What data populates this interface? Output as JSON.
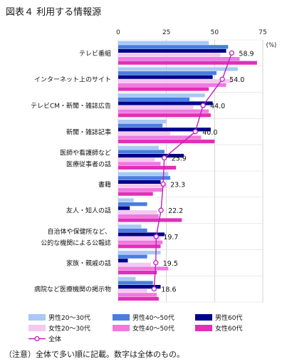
{
  "figure_title": "図表４ 利用する情報源",
  "footnote": "（注意）全体で多い順に記載。数字は全体のもの。",
  "colors": {
    "m2030": "#a9c8f5",
    "m4050": "#4a7ee0",
    "m60": "#00008b",
    "f2030": "#f4c8f0",
    "f4050": "#ee7ae0",
    "f60": "#e030b8",
    "total": "#c020c0"
  },
  "chart_data": {
    "type": "bar",
    "orientation": "horizontal",
    "unit": "(%)",
    "xlim": [
      0,
      75
    ],
    "xticks": [
      "0",
      "25",
      "50",
      "75"
    ],
    "categories": [
      [
        "テレビ番組"
      ],
      [
        "インターネット上のサイト"
      ],
      [
        "テレビCM・新聞・雑誌広告"
      ],
      [
        "新聞・雑誌記事"
      ],
      [
        "医師や看護師など",
        "医療従事者の話"
      ],
      [
        "書籍"
      ],
      [
        "友人・知人の話"
      ],
      [
        "自治体や保健所など、",
        "公的な機関による公報誌"
      ],
      [
        "家族・親戚の話"
      ],
      [
        "病院など医療機関の掲示物"
      ]
    ],
    "series": [
      {
        "name": "男性20～30代",
        "color_key": "m2030",
        "values": [
          47,
          62,
          45,
          25,
          21,
          26,
          8,
          12,
          22,
          9
        ]
      },
      {
        "name": "男性40～50代",
        "color_key": "m4050",
        "values": [
          57,
          51,
          37,
          23,
          24,
          27,
          15,
          15,
          15,
          18
        ]
      },
      {
        "name": "男性60代",
        "color_key": "m60",
        "values": [
          56,
          49,
          49,
          48,
          34,
          22,
          6,
          24,
          5,
          22
        ]
      },
      {
        "name": "女性20～30代",
        "color_key": "f2030",
        "values": [
          53,
          59,
          39,
          27,
          19,
          25,
          20,
          22,
          17,
          15
        ]
      },
      {
        "name": "女性40～50代",
        "color_key": "f4050",
        "values": [
          63,
          56,
          47,
          43,
          22,
          23,
          21,
          23,
          26,
          20
        ]
      },
      {
        "name": "女性60代",
        "color_key": "f60",
        "values": [
          72,
          47,
          48,
          50,
          30,
          18,
          33,
          22,
          20,
          21
        ]
      }
    ],
    "total": {
      "name": "全体",
      "color_key": "total",
      "values": [
        58.9,
        54.0,
        44.0,
        40.0,
        23.9,
        23.3,
        22.2,
        19.7,
        19.5,
        18.6
      ],
      "labels": [
        "58.9",
        "54.0",
        "44.0",
        "40.0",
        "23.9",
        "23.3",
        "22.2",
        "19.7",
        "19.5",
        "18.6"
      ]
    },
    "legend_order": [
      0,
      1,
      2,
      3,
      4,
      5
    ]
  }
}
